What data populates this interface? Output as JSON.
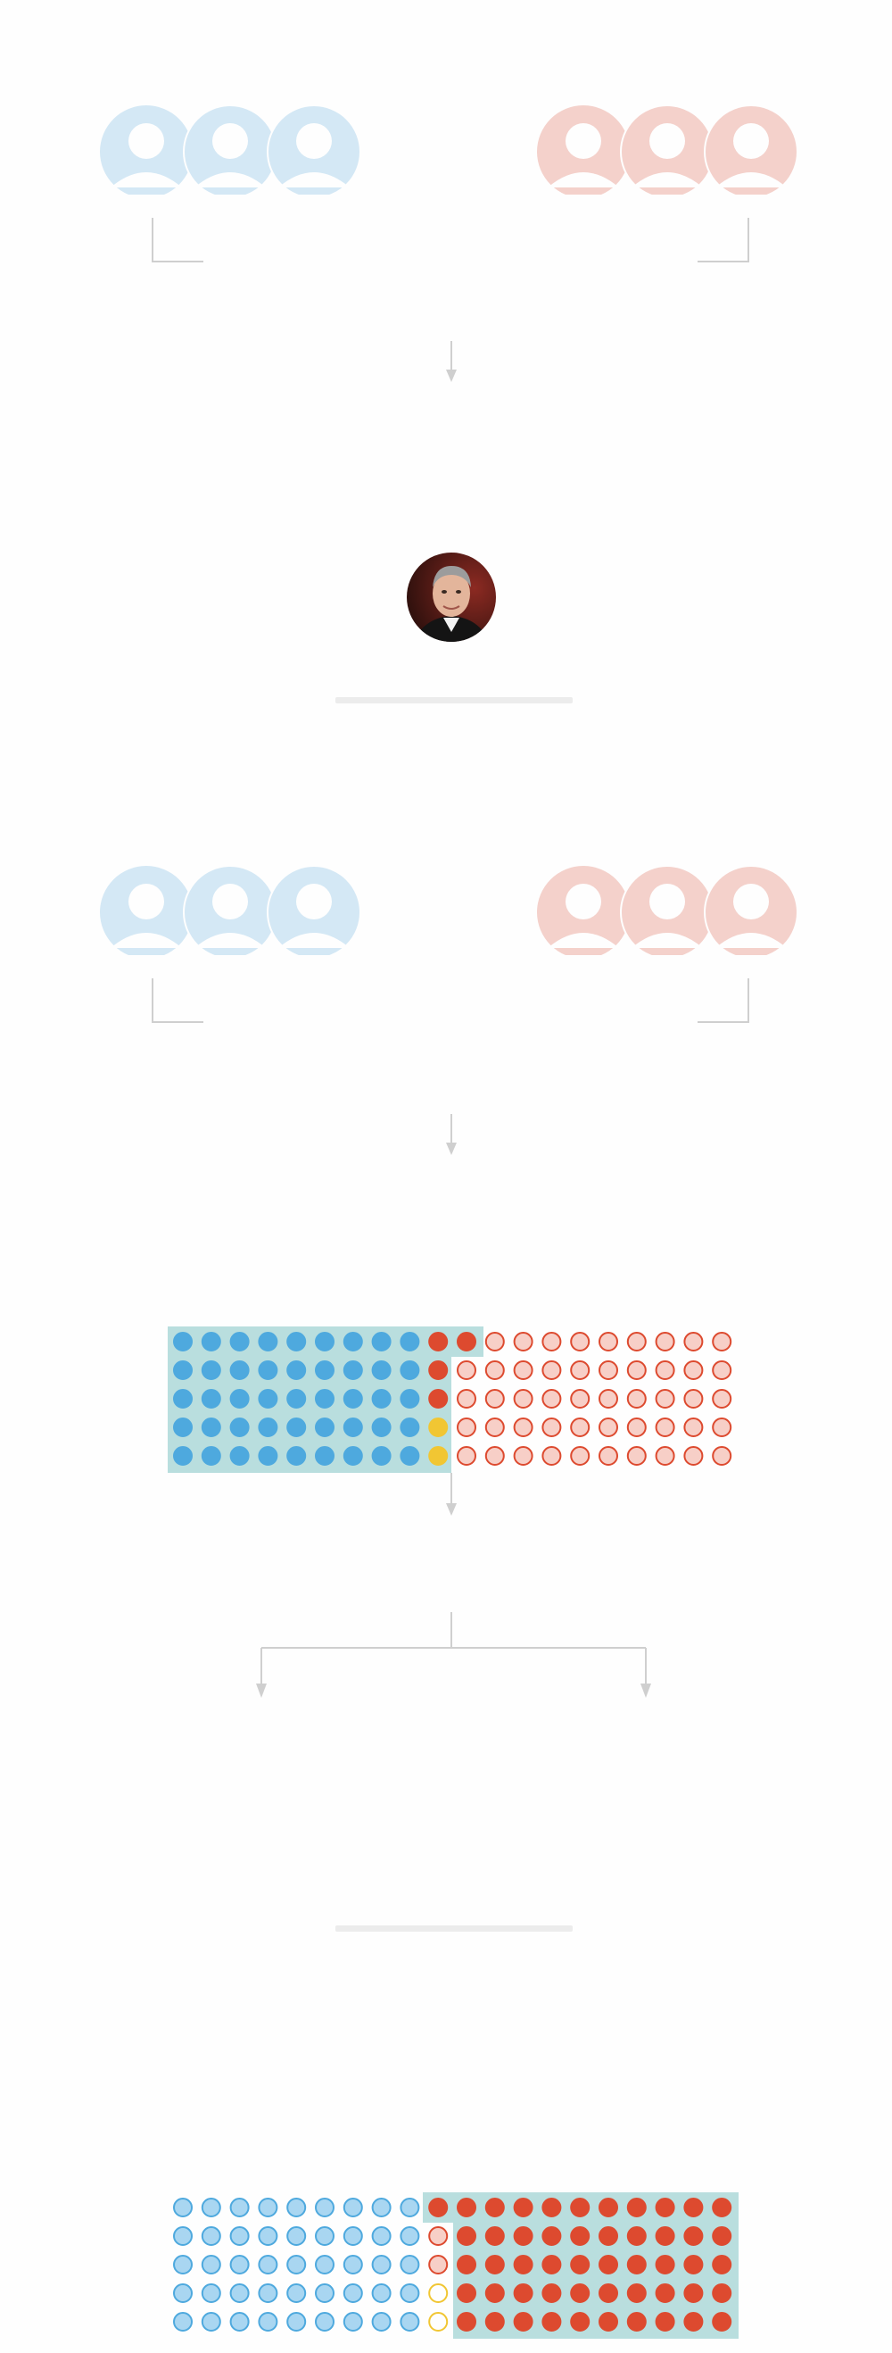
{
  "icons": {
    "justice_icon": "person-silhouette-icon",
    "chief_justice_icon": "chief-justice-portrait-icon"
  },
  "colors": {
    "liberal_light": "#d4e8f5",
    "conservative_light": "#f4d1cb",
    "blue_dot": "#4ea9de",
    "red_dot": "#dd4a2f",
    "yellow_dot": "#f1c633",
    "light_blue_dot_fill": "#a9d6f1",
    "light_red_dot_fill": "#f7cfc7",
    "highlight": "#b9dede",
    "connector": "#cfcfcf"
  },
  "grids": [
    {
      "id": "grid-1",
      "rows": [
        [
          "B",
          "B",
          "B",
          "B",
          "B",
          "B",
          "B",
          "B",
          "B",
          "R",
          "R",
          "r",
          "r",
          "r",
          "r",
          "r",
          "r",
          "r",
          "r",
          "r"
        ],
        [
          "B",
          "B",
          "B",
          "B",
          "B",
          "B",
          "B",
          "B",
          "B",
          "R",
          "r",
          "r",
          "r",
          "r",
          "r",
          "r",
          "r",
          "r",
          "r",
          "r"
        ],
        [
          "B",
          "B",
          "B",
          "B",
          "B",
          "B",
          "B",
          "B",
          "B",
          "R",
          "r",
          "r",
          "r",
          "r",
          "r",
          "r",
          "r",
          "r",
          "r",
          "r"
        ],
        [
          "B",
          "B",
          "B",
          "B",
          "B",
          "B",
          "B",
          "B",
          "B",
          "Y",
          "r",
          "r",
          "r",
          "r",
          "r",
          "r",
          "r",
          "r",
          "r",
          "r"
        ],
        [
          "B",
          "B",
          "B",
          "B",
          "B",
          "B",
          "B",
          "B",
          "B",
          "Y",
          "r",
          "r",
          "r",
          "r",
          "r",
          "r",
          "r",
          "r",
          "r",
          "r"
        ]
      ]
    },
    {
      "id": "grid-2",
      "rows": [
        [
          "b",
          "b",
          "b",
          "b",
          "b",
          "b",
          "b",
          "b",
          "b",
          "R",
          "R",
          "R",
          "R",
          "R",
          "R",
          "R",
          "R",
          "R",
          "R",
          "R"
        ],
        [
          "b",
          "b",
          "b",
          "b",
          "b",
          "b",
          "b",
          "b",
          "b",
          "r",
          "R",
          "R",
          "R",
          "R",
          "R",
          "R",
          "R",
          "R",
          "R",
          "R"
        ],
        [
          "b",
          "b",
          "b",
          "b",
          "b",
          "b",
          "b",
          "b",
          "b",
          "r",
          "R",
          "R",
          "R",
          "R",
          "R",
          "R",
          "R",
          "R",
          "R",
          "R"
        ],
        [
          "b",
          "b",
          "b",
          "b",
          "b",
          "b",
          "b",
          "b",
          "b",
          "y",
          "R",
          "R",
          "R",
          "R",
          "R",
          "R",
          "R",
          "R",
          "R",
          "R"
        ],
        [
          "b",
          "b",
          "b",
          "b",
          "b",
          "b",
          "b",
          "b",
          "b",
          "y",
          "R",
          "R",
          "R",
          "R",
          "R",
          "R",
          "R",
          "R",
          "R",
          "R"
        ]
      ]
    }
  ]
}
